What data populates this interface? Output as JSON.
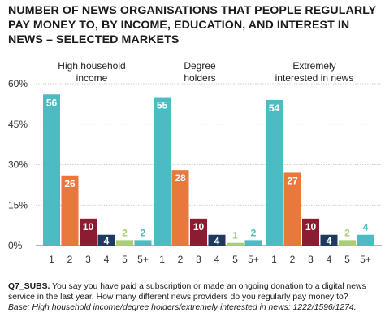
{
  "title_lines": [
    "NUMBER OF NEWS ORGANISATIONS THAT PEOPLE REGULARLY",
    "PAY MONEY TO, BY INCOME, EDUCATION, AND INTEREST IN",
    "NEWS – SELECTED MARKETS"
  ],
  "footnote": {
    "code": "Q7_SUBS.",
    "question": " You say you have paid a subscription or made an ongoing donation to a digital news service in the last year. How many different news providers do you regularly pay money to?",
    "base": "Base: High household income/degree holders/extremely interested in news: 1222/1596/1274."
  },
  "colors": {
    "1": "#4dbcc2",
    "2": "#e8783c",
    "3": "#8c1c32",
    "4": "#1e3a5f",
    "5": "#a9cf6e",
    "5+": "#4dbcc2",
    "axis_text": "#333333",
    "gridline": "#bfbfbf"
  },
  "chart_data": {
    "type": "bar",
    "categories": [
      "1",
      "2",
      "3",
      "4",
      "5",
      "5+"
    ],
    "ylim": [
      0,
      60
    ],
    "yticks": [
      "0%",
      "15%",
      "30%",
      "45%",
      "60%"
    ],
    "ytick_values": [
      0,
      15,
      30,
      45,
      60
    ],
    "grid": true,
    "groups": [
      {
        "label_lines": [
          "High household",
          "income"
        ],
        "values": [
          56,
          26,
          10,
          4,
          2,
          2
        ],
        "data_labels": [
          "56",
          "26",
          "10",
          "4",
          "2",
          "2"
        ]
      },
      {
        "label_lines": [
          "Degree",
          "holders"
        ],
        "values": [
          55,
          28,
          10,
          4,
          1,
          2
        ],
        "data_labels": [
          "55",
          "28",
          "10",
          "4",
          "1",
          "2"
        ]
      },
      {
        "label_lines": [
          "Extremely",
          "interested in news"
        ],
        "values": [
          54,
          27,
          10,
          4,
          2,
          4
        ],
        "data_labels": [
          "54",
          "27",
          "10",
          "4",
          "2",
          "4"
        ]
      }
    ]
  }
}
